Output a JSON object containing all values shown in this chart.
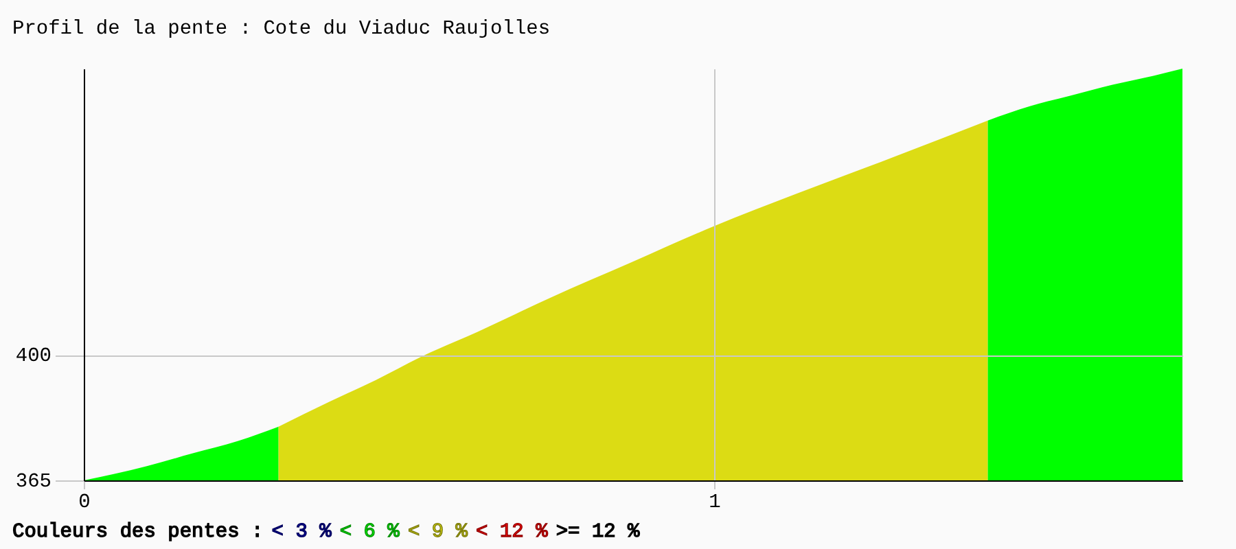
{
  "chart_data": {
    "type": "area",
    "title": "Profil de la pente : Cote du Viaduc Raujolles",
    "legend_title": "Couleurs des pentes :",
    "x": [
      0,
      0.1,
      0.172,
      0.245,
      0.309,
      0.39,
      0.463,
      0.535,
      0.625,
      0.74,
      0.87,
      1.0,
      1.13,
      1.28,
      1.434,
      1.501,
      1.566,
      1.632,
      1.697,
      1.743
    ],
    "series": [
      {
        "name": "< 3 %",
        "color": "#0000a0",
        "values": [
          null,
          null,
          null,
          null,
          null,
          null,
          null,
          null,
          null,
          null,
          null,
          null,
          null,
          null,
          null,
          null,
          null,
          null,
          null,
          null
        ]
      },
      {
        "name": "< 6 %",
        "color": "#00ff00",
        "values": [
          365,
          369,
          372.5,
          376,
          380,
          null,
          null,
          null,
          null,
          null,
          null,
          null,
          null,
          null,
          465.5,
          469.5,
          472.5,
          475.5,
          478,
          480
        ]
      },
      {
        "name": "< 9 %",
        "color": "#dcdc14",
        "values": [
          null,
          null,
          null,
          null,
          380,
          387,
          393,
          399.5,
          406.5,
          416,
          426,
          436,
          445,
          455,
          465.5,
          null,
          null,
          null,
          null,
          null
        ]
      },
      {
        "name": "< 12 %",
        "color": "#ff0000",
        "values": [
          null,
          null,
          null,
          null,
          null,
          null,
          null,
          null,
          null,
          null,
          null,
          null,
          null,
          null,
          null,
          null,
          null,
          null,
          null,
          null
        ]
      },
      {
        "name": ">= 12 %",
        "color": "#000000",
        "values": [
          null,
          null,
          null,
          null,
          null,
          null,
          null,
          null,
          null,
          null,
          null,
          null,
          null,
          null,
          null,
          null,
          null,
          null,
          null,
          null
        ]
      }
    ],
    "xlim": [
      0,
      1.743
    ],
    "ylim": [
      365,
      480
    ],
    "xticks": [
      0,
      1
    ],
    "yticks": [
      365,
      400
    ],
    "grid": true,
    "legend": "bottom"
  }
}
